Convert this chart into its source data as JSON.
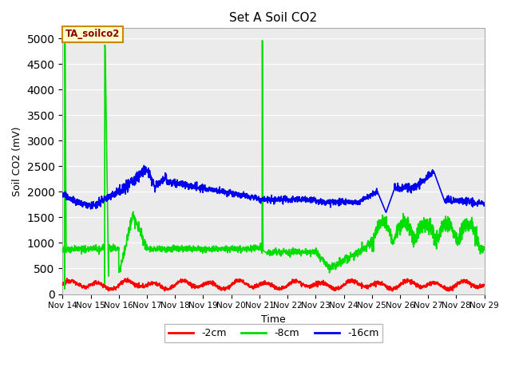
{
  "title": "Set A Soil CO2",
  "xlabel": "Time",
  "ylabel": "Soil CO2 (mV)",
  "ylim": [
    0,
    5200
  ],
  "yticks": [
    0,
    500,
    1000,
    1500,
    2000,
    2500,
    3000,
    3500,
    4000,
    4500,
    5000
  ],
  "date_start": 14,
  "date_end": 29,
  "xtick_labels": [
    "Nov 14",
    "Nov 15",
    "Nov 16",
    "Nov 17",
    "Nov 18",
    "Nov 19",
    "Nov 20",
    "Nov 21",
    "Nov 22",
    "Nov 23",
    "Nov 24",
    "Nov 25",
    "Nov 26",
    "Nov 27",
    "Nov 28",
    "Nov 29"
  ],
  "colors": {
    "red": "#ff0000",
    "green": "#00dd00",
    "blue": "#0000ee",
    "background": "#ebebeb",
    "grid": "#ffffff",
    "legend_box_bg": "#ffffcc",
    "legend_box_border": "#cc8800"
  },
  "legend_entries": [
    "-2cm",
    "-8cm",
    "-16cm"
  ],
  "annotation_text": "TA_soilco2",
  "line_width": 1.2
}
